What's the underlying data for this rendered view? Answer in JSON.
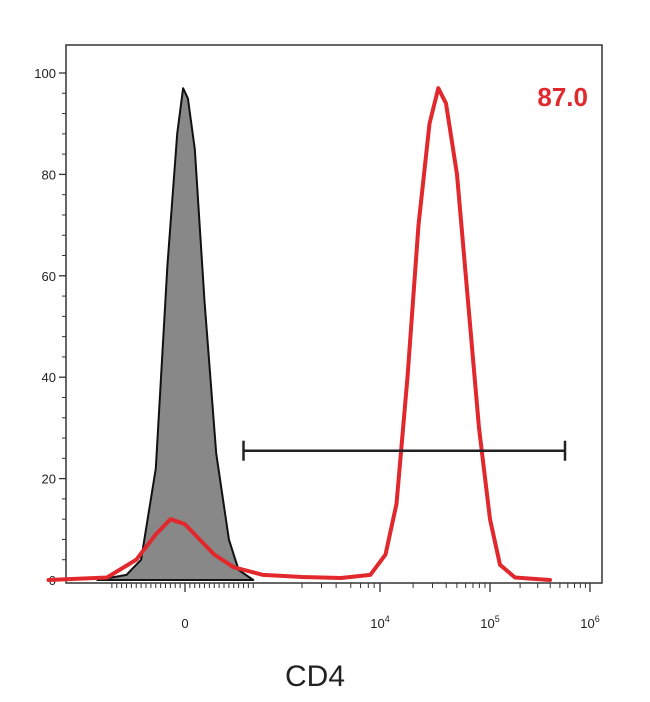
{
  "chart_data": {
    "type": "area",
    "xlabel": "CD4",
    "ylabel": "",
    "ylim": [
      0,
      105
    ],
    "y_ticks": [
      0,
      20,
      40,
      60,
      80,
      100
    ],
    "x_scale": "biexponential",
    "x_tick_labels": [
      {
        "base": "0",
        "exp": ""
      },
      {
        "base": "10",
        "exp": "4"
      },
      {
        "base": "10",
        "exp": "5"
      },
      {
        "base": "10",
        "exp": "6"
      }
    ],
    "grid": false,
    "legend": "none",
    "series": [
      {
        "color": "#888888",
        "fill": true,
        "points": [
          [
            -0.9,
            0
          ],
          [
            -0.6,
            1
          ],
          [
            -0.45,
            4
          ],
          [
            -0.3,
            22
          ],
          [
            -0.18,
            62
          ],
          [
            -0.08,
            88
          ],
          [
            -0.02,
            97
          ],
          [
            0.03,
            95
          ],
          [
            0.1,
            85
          ],
          [
            0.2,
            55
          ],
          [
            0.32,
            25
          ],
          [
            0.45,
            8
          ],
          [
            0.55,
            2
          ],
          [
            0.7,
            0
          ]
        ]
      },
      {
        "color": "#e0282d",
        "fill": false,
        "points": [
          [
            -1.4,
            0
          ],
          [
            -0.8,
            0.5
          ],
          [
            -0.5,
            4
          ],
          [
            -0.3,
            9
          ],
          [
            -0.15,
            12
          ],
          [
            0,
            11
          ],
          [
            0.15,
            8
          ],
          [
            0.3,
            5
          ],
          [
            0.5,
            2.5
          ],
          [
            0.8,
            1
          ],
          [
            1.2,
            0.6
          ],
          [
            1.6,
            0.4
          ],
          [
            1.9,
            1
          ],
          [
            2.05,
            5
          ],
          [
            2.15,
            15
          ],
          [
            2.25,
            40
          ],
          [
            2.35,
            70
          ],
          [
            2.45,
            90
          ],
          [
            2.53,
            97
          ],
          [
            2.6,
            94
          ],
          [
            2.7,
            80
          ],
          [
            2.8,
            55
          ],
          [
            2.9,
            30
          ],
          [
            3.0,
            12
          ],
          [
            3.1,
            3
          ],
          [
            3.25,
            0.5
          ],
          [
            3.6,
            0
          ]
        ]
      }
    ],
    "gate": {
      "x_start": 0.6,
      "x_end": 3.75,
      "y": 25.5,
      "value": "87.0"
    }
  }
}
